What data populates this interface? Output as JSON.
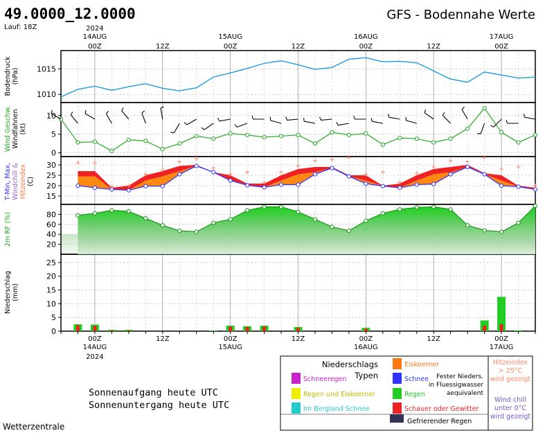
{
  "header": {
    "coords": "49.0000_12.0000",
    "run": "Lauf: 18Z",
    "title": "GFS - Bodennahe Werte"
  },
  "time_axis": {
    "labels": [
      {
        "h": 6,
        "text": "00Z",
        "date": "14AUG",
        "year": "2024"
      },
      {
        "h": 18,
        "text": "12Z"
      },
      {
        "h": 30,
        "text": "00Z",
        "date": "15AUG"
      },
      {
        "h": 42,
        "text": "12Z"
      },
      {
        "h": 54,
        "text": "00Z",
        "date": "16AUG"
      },
      {
        "h": 66,
        "text": "12Z"
      },
      {
        "h": 78,
        "text": "00Z",
        "date": "17AUG"
      }
    ]
  },
  "panel_labels": {
    "pressure": [
      "Bodendruck",
      "(hPa)"
    ],
    "wind": [
      "Wind Geschw.",
      "Windfahnen",
      "(kt)"
    ],
    "temp": [
      "T-Min, Max,",
      "Windchill &",
      "Hitzeindex",
      "(C)"
    ],
    "rh": [
      "2m RF (%)"
    ],
    "precip": [
      "Niederschlag",
      "(mm)"
    ]
  },
  "chart_data": [
    {
      "type": "line",
      "id": "pressure",
      "ylabel": "Bodendruck (hPa)",
      "x_hours": [
        0,
        3,
        6,
        9,
        12,
        15,
        18,
        21,
        24,
        27,
        30,
        33,
        36,
        39,
        42,
        45,
        48,
        51,
        54,
        57,
        60,
        63,
        66,
        69,
        72,
        75,
        78,
        81,
        84
      ],
      "values": [
        1009.5,
        1011.0,
        1011.6,
        1010.8,
        1011.5,
        1012.1,
        1011.2,
        1010.7,
        1011.3,
        1013.4,
        1014.2,
        1015.1,
        1016.1,
        1016.6,
        1015.8,
        1014.9,
        1015.3,
        1016.9,
        1017.2,
        1016.4,
        1016.5,
        1016.2,
        1014.6,
        1013.0,
        1012.4,
        1014.4,
        1013.8,
        1013.2,
        1013.4
      ],
      "ylim": [
        1008.4,
        1018.6
      ],
      "ticks": [
        1010,
        1015
      ]
    },
    {
      "type": "line",
      "id": "wind",
      "ylabel": "Wind Geschw. (kt)",
      "x_hours": [
        0,
        3,
        6,
        9,
        12,
        15,
        18,
        21,
        24,
        27,
        30,
        33,
        36,
        39,
        42,
        45,
        48,
        51,
        54,
        57,
        60,
        63,
        66,
        69,
        72,
        75,
        78,
        81,
        84
      ],
      "values": [
        9,
        2.8,
        3,
        0.5,
        3.5,
        3.2,
        1,
        2.5,
        4.5,
        3.8,
        5.2,
        4.8,
        4.2,
        4.5,
        4.8,
        2.5,
        5.5,
        4.8,
        5.2,
        2.2,
        4,
        3.8,
        2.8,
        3.8,
        6.5,
        12,
        5.5,
        2.8,
        4.8
      ],
      "ylim": [
        -1,
        13.5
      ],
      "ticks": [
        0,
        5,
        10
      ],
      "barb_dirs_deg": [
        300,
        320,
        300,
        330,
        320,
        340,
        350,
        210,
        240,
        235,
        260,
        250,
        270,
        285,
        265,
        280,
        265,
        260,
        270,
        280,
        280,
        285,
        305,
        315,
        330,
        200,
        225,
        270,
        280
      ]
    },
    {
      "type": "area",
      "id": "temp",
      "ylabel": "T-Min, Max, Windchill & Hitzeindex (C)",
      "x_hours": [
        3,
        6,
        9,
        12,
        15,
        18,
        21,
        24,
        27,
        30,
        33,
        36,
        39,
        42,
        45,
        48,
        51,
        54,
        57,
        60,
        63,
        66,
        69,
        72,
        75,
        78,
        81,
        84
      ],
      "tmin": [
        20,
        19,
        18.2,
        17.8,
        19.8,
        19.8,
        25.5,
        29.5,
        26.5,
        22.5,
        20.2,
        19.2,
        20.5,
        20.5,
        25.5,
        28.5,
        24.5,
        21,
        19.8,
        19,
        20.5,
        20.8,
        25.5,
        29,
        25.5,
        20,
        19.5,
        18.2
      ],
      "tmax": [
        27,
        27,
        19,
        20,
        25,
        27,
        29.5,
        30,
        26,
        25,
        21,
        21,
        25,
        28,
        29,
        29,
        25,
        25,
        20,
        21,
        25,
        28,
        29,
        30,
        26,
        25,
        20,
        19
      ],
      "heat_index": [
        27,
        27,
        19,
        20,
        25,
        27,
        29.5,
        30,
        26,
        25,
        21,
        21,
        25,
        28,
        29,
        29,
        25,
        25,
        20,
        21,
        25,
        28,
        29,
        30,
        26,
        25,
        20,
        19
      ],
      "plus_marks": [
        [
          3,
          31
        ],
        [
          6,
          31
        ],
        [
          9,
          19.5
        ],
        [
          12,
          20
        ],
        [
          15,
          25.5
        ],
        [
          18,
          27.5
        ],
        [
          21,
          31.5
        ],
        [
          24,
          33
        ],
        [
          27,
          28.5
        ],
        [
          30,
          25.5
        ],
        [
          33,
          26.5
        ],
        [
          36,
          21.5
        ],
        [
          39,
          26.5
        ],
        [
          42,
          29.5
        ],
        [
          45,
          32
        ],
        [
          48,
          32.5
        ],
        [
          51,
          37.5
        ],
        [
          54,
          25.5
        ],
        [
          57,
          26.5
        ],
        [
          60,
          21.5
        ],
        [
          63,
          26
        ],
        [
          66,
          29
        ],
        [
          69,
          32
        ],
        [
          72,
          31.5
        ],
        [
          75,
          37.5
        ],
        [
          78,
          28
        ],
        [
          81,
          29
        ],
        [
          84,
          20
        ]
      ],
      "ylim": [
        11,
        34
      ],
      "ticks": [
        15,
        20,
        25,
        30
      ]
    },
    {
      "type": "area",
      "id": "rh",
      "ylabel": "2m RF (%)",
      "x_hours": [
        3,
        6,
        9,
        12,
        15,
        18,
        21,
        24,
        27,
        30,
        33,
        36,
        39,
        42,
        45,
        48,
        51,
        54,
        57,
        60,
        63,
        66,
        69,
        72,
        75,
        78,
        81,
        84
      ],
      "values": [
        78,
        82,
        88,
        86,
        72,
        58,
        47,
        45,
        63,
        70,
        88,
        95,
        95,
        85,
        70,
        55,
        47,
        67,
        82,
        90,
        94,
        95,
        90,
        58,
        48,
        45,
        63,
        97
      ],
      "ylim": [
        0,
        100
      ],
      "ticks": [
        20,
        40,
        60,
        80
      ]
    },
    {
      "type": "bar",
      "id": "precip",
      "ylabel": "Niederschlag (mm)",
      "x_hours": [
        3,
        6,
        9,
        12,
        15,
        18,
        21,
        24,
        27,
        30,
        33,
        36,
        39,
        42,
        45,
        48,
        51,
        54,
        57,
        60,
        63,
        66,
        69,
        72,
        75,
        78,
        81,
        84
      ],
      "total": [
        2.5,
        2.4,
        0.5,
        0.5,
        0,
        0,
        0,
        0,
        0.2,
        2.0,
        1.8,
        2.0,
        0,
        1.5,
        0,
        0,
        0,
        1.2,
        0,
        0,
        0,
        0,
        0,
        0,
        3.9,
        12.5,
        0.3,
        0
      ],
      "convective": [
        2.2,
        2.0,
        0.3,
        0.3,
        0,
        0,
        0,
        0,
        0,
        1.7,
        1.5,
        1.7,
        0,
        1.2,
        0,
        0,
        0,
        0.9,
        0,
        0,
        0,
        0,
        0,
        0,
        2.0,
        2.5,
        0,
        0
      ],
      "ylim": [
        0,
        28
      ],
      "ticks": [
        0,
        5,
        10,
        15,
        20,
        25
      ]
    }
  ],
  "legend": {
    "title_1": "Niederschlags",
    "title_2": "Typen",
    "items": [
      {
        "label": "Schneeregen",
        "color": "#cc22cc"
      },
      {
        "label": "Regen und Eiskoerner",
        "color": "#eeee00"
      },
      {
        "label": "Im Bergland Schnee",
        "color": "#22cccc"
      },
      {
        "label": "Eiskoerner",
        "color": "#ff7711"
      },
      {
        "label": "Schnee",
        "color": "#3333ff"
      },
      {
        "label": "Regen",
        "color": "#22cc22"
      },
      {
        "label": "Schauer oder Gewitter",
        "color": "#ee2222"
      },
      {
        "label": "Gefrierender Regen",
        "color": "#333355"
      }
    ],
    "fest_1": "Fester Nieders.",
    "fest_2": "in Fluessigwasser",
    "fest_3": "aequivalent",
    "heat_lines": [
      "Hitzeindex",
      "> 25°C",
      "wird gezeigt"
    ],
    "chill_lines": [
      "Wind chill",
      "unter 0°C",
      "wird gezeigt"
    ]
  },
  "sun": {
    "sunrise": "Sonnenaufgang heute  UTC",
    "sunset": "Sonnenuntergang heute  UTC"
  },
  "brand": "Wetterzentrale",
  "colors": {
    "pressure_line": "#1e9be0",
    "wind_line": "#22aa22",
    "tmin_line": "#3333ff",
    "heat_fill": "#ee2222",
    "tmax_fill": "#ff8811",
    "plus": "#ff8866",
    "rh_fill": "#22cc22",
    "precip_total": "#22cc22",
    "precip_conv": "#ee2222"
  }
}
